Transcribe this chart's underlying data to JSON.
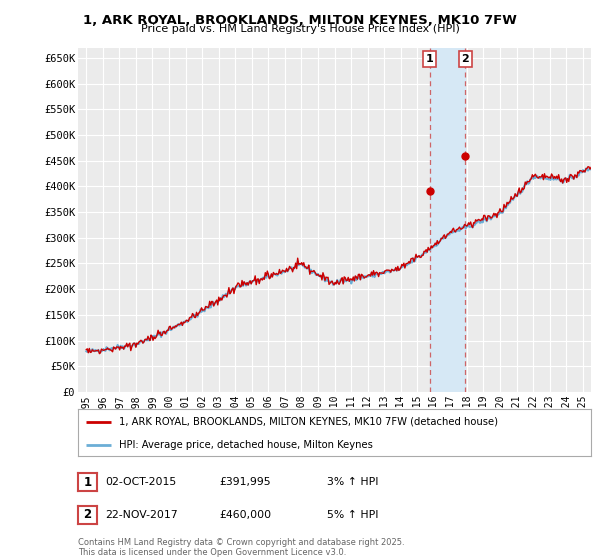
{
  "title": "1, ARK ROYAL, BROOKLANDS, MILTON KEYNES, MK10 7FW",
  "subtitle": "Price paid vs. HM Land Registry's House Price Index (HPI)",
  "yticks": [
    0,
    50000,
    100000,
    150000,
    200000,
    250000,
    300000,
    350000,
    400000,
    450000,
    500000,
    550000,
    600000,
    650000
  ],
  "ytick_labels": [
    "£0",
    "£50K",
    "£100K",
    "£150K",
    "£200K",
    "£250K",
    "£300K",
    "£350K",
    "£400K",
    "£450K",
    "£500K",
    "£550K",
    "£600K",
    "£650K"
  ],
  "xmin": 1994.5,
  "xmax": 2025.5,
  "ymin": 0,
  "ymax": 670000,
  "transaction1_date": 2015.75,
  "transaction1_price": 391995,
  "transaction2_date": 2017.9,
  "transaction2_price": 460000,
  "hpi_color": "#6baed6",
  "price_color": "#cc0000",
  "span_color": "#d6e8f5",
  "vline_color": "#cc4444",
  "legend_price_label": "1, ARK ROYAL, BROOKLANDS, MILTON KEYNES, MK10 7FW (detached house)",
  "legend_hpi_label": "HPI: Average price, detached house, Milton Keynes",
  "annotation1_date": "02-OCT-2015",
  "annotation1_price": "£391,995",
  "annotation1_hpi": "3% ↑ HPI",
  "annotation2_date": "22-NOV-2017",
  "annotation2_price": "£460,000",
  "annotation2_hpi": "5% ↑ HPI",
  "footnote": "Contains HM Land Registry data © Crown copyright and database right 2025.\nThis data is licensed under the Open Government Licence v3.0.",
  "background_color": "#ffffff",
  "plot_bg_color": "#ebebeb"
}
